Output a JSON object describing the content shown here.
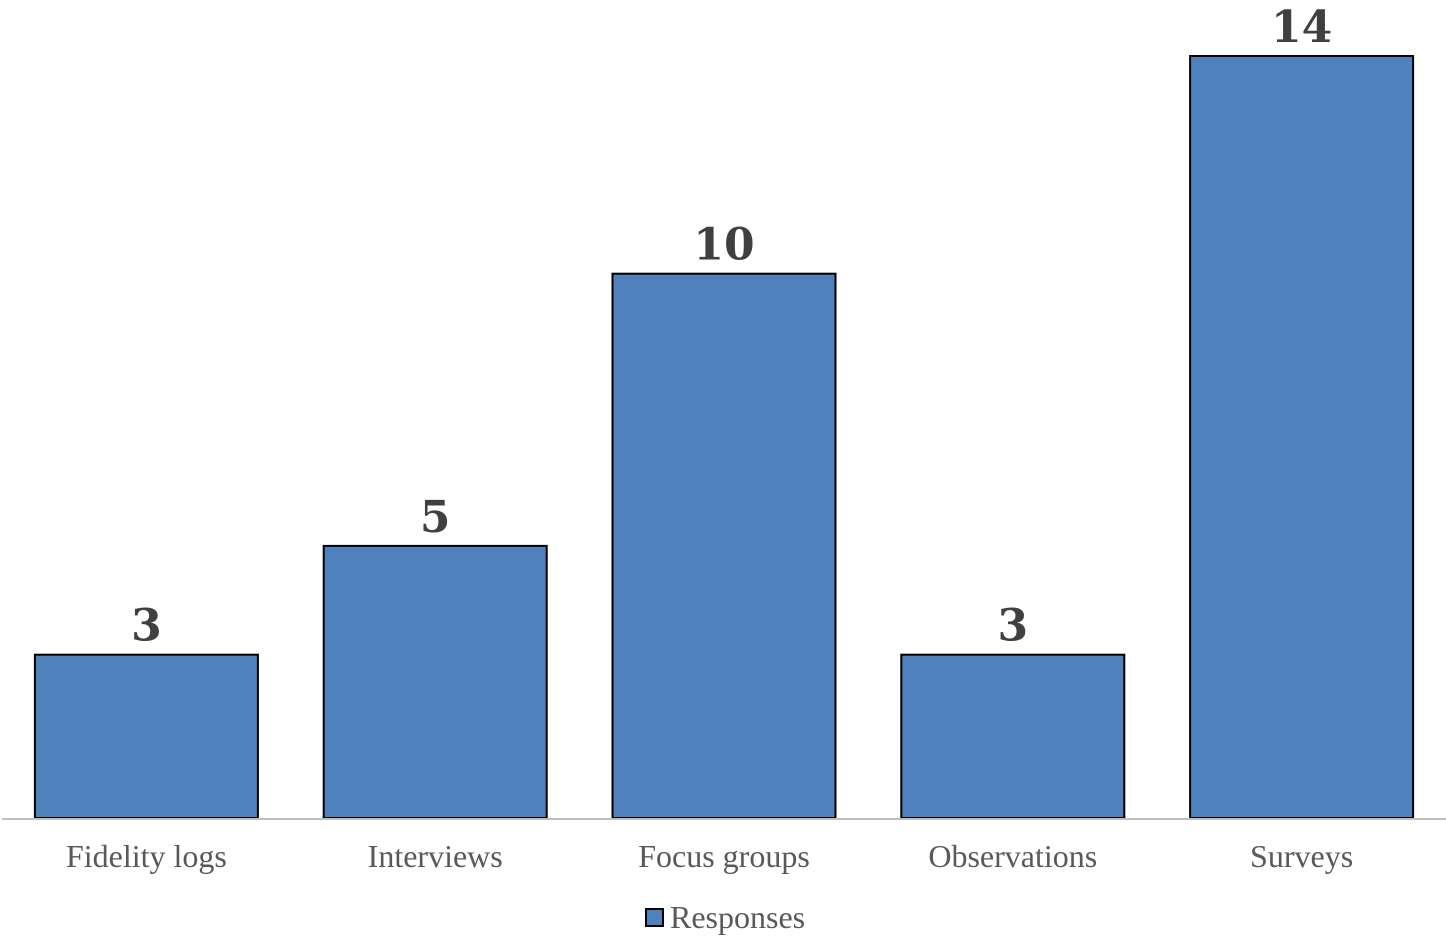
{
  "chart_data": {
    "type": "bar",
    "categories": [
      "Fidelity logs",
      "Interviews",
      "Focus groups",
      "Observations",
      "Surveys"
    ],
    "series": [
      {
        "name": "Responses",
        "values": [
          3,
          5,
          10,
          3,
          14
        ],
        "color": "#4f81bd"
      }
    ],
    "data_labels": [
      "3",
      "5",
      "10",
      "3",
      "14"
    ],
    "title": "",
    "xlabel": "",
    "ylabel": "",
    "ylim": [
      0,
      14
    ],
    "grid": false,
    "legend": "bottom"
  }
}
